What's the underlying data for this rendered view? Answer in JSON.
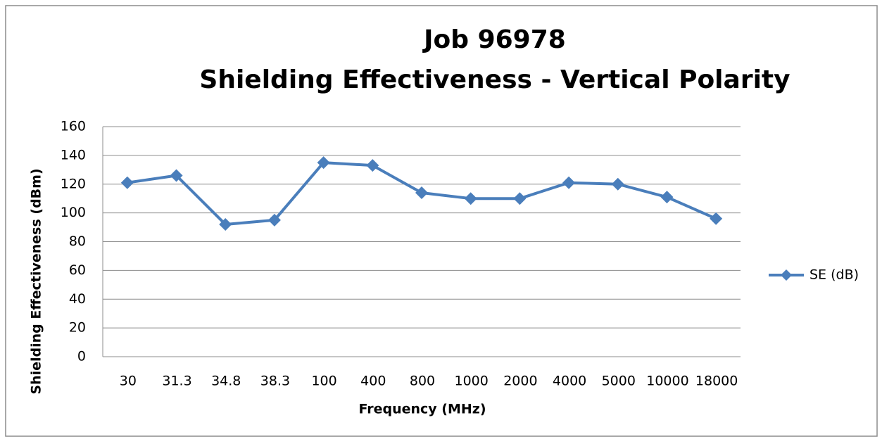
{
  "chart_data": {
    "type": "line",
    "title": "Job 96978",
    "subtitle": "Shielding Effectiveness - Vertical Polarity",
    "x_label": "Frequency (MHz)",
    "y_label": "Shielding Effectiveness  (dBm)",
    "categories": [
      "30",
      "31.3",
      "34.8",
      "38.3",
      "100",
      "400",
      "800",
      "1000",
      "2000",
      "4000",
      "5000",
      "10000",
      "18000"
    ],
    "series": [
      {
        "name": "SE (dB)",
        "color": "#4a7ebb",
        "values": [
          121,
          126,
          92,
          95,
          135,
          133,
          114,
          110,
          110,
          121,
          120,
          111,
          96
        ]
      }
    ],
    "ylim": [
      0,
      160
    ],
    "yticks": [
      0,
      20,
      40,
      60,
      80,
      100,
      120,
      140,
      160
    ],
    "grid": true,
    "legend": "right"
  }
}
